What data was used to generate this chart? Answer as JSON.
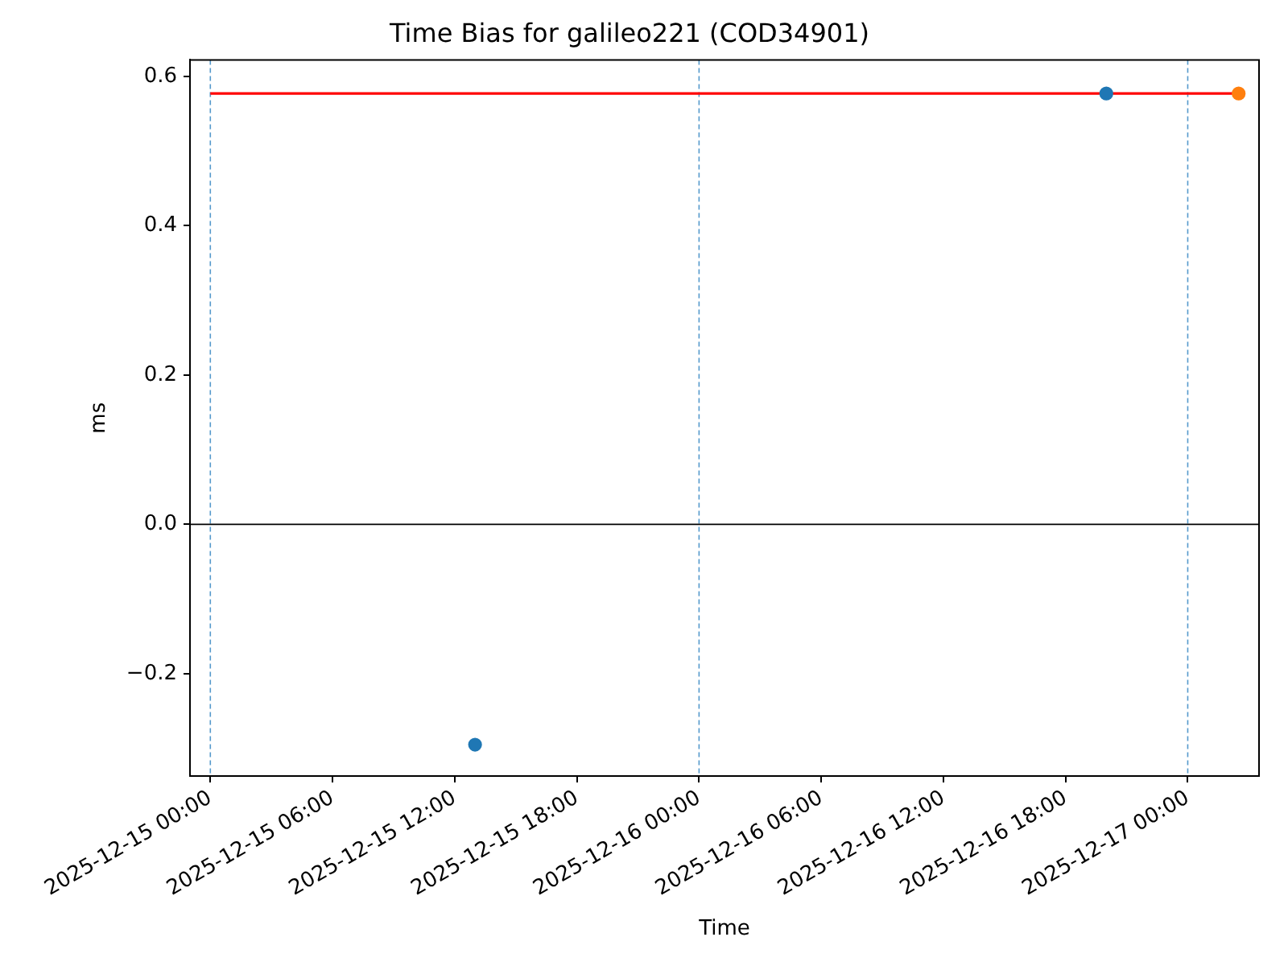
{
  "chart_data": {
    "type": "scatter",
    "title": "Time Bias for galileo221 (COD34901)",
    "xlabel": "Time",
    "ylabel": "ms",
    "xlim": [
      "2025-12-14T23:00",
      "2025-12-17T03:30"
    ],
    "xticks": [
      {
        "value": "2025-12-15T00:00",
        "label": "2025-12-15 00:00"
      },
      {
        "value": "2025-12-15T06:00",
        "label": "2025-12-15 06:00"
      },
      {
        "value": "2025-12-15T12:00",
        "label": "2025-12-15 12:00"
      },
      {
        "value": "2025-12-15T18:00",
        "label": "2025-12-15 18:00"
      },
      {
        "value": "2025-12-16T00:00",
        "label": "2025-12-16 00:00"
      },
      {
        "value": "2025-12-16T06:00",
        "label": "2025-12-16 06:00"
      },
      {
        "value": "2025-12-16T12:00",
        "label": "2025-12-16 12:00"
      },
      {
        "value": "2025-12-16T18:00",
        "label": "2025-12-16 18:00"
      },
      {
        "value": "2025-12-17T00:00",
        "label": "2025-12-17 00:00"
      }
    ],
    "ylim": [
      -0.337,
      0.622
    ],
    "yticks": [
      {
        "value": -0.2,
        "label": "−0.2"
      },
      {
        "value": 0,
        "label": "0.0"
      },
      0.2,
      0.4,
      0.6
    ],
    "series": [
      {
        "type": "line",
        "color": "#ff0000",
        "marker": "none",
        "line_style": "solid",
        "x": [
          "2025-12-15T00:00",
          "2025-12-17T02:30"
        ],
        "values": [
          0.577,
          0.577
        ]
      },
      {
        "type": "scatter",
        "color": "#1f77b4",
        "marker": "circle",
        "x": [
          "2025-12-15T13:00",
          "2025-12-16T20:00"
        ],
        "values": [
          -0.295,
          0.577
        ]
      },
      {
        "type": "scatter",
        "color": "#ff7f0e",
        "marker": "circle",
        "x": [
          "2025-12-17T02:30"
        ],
        "values": [
          0.577
        ]
      }
    ],
    "ref_lines": [
      {
        "axis": "x",
        "value": "2025-12-15T00:00",
        "color": "#5599cc",
        "line_style": "dashed"
      },
      {
        "axis": "x",
        "value": "2025-12-16T00:00",
        "color": "#5599cc",
        "line_style": "dashed"
      },
      {
        "axis": "x",
        "value": "2025-12-17T00:00",
        "color": "#5599cc",
        "line_style": "dashed"
      },
      {
        "axis": "y",
        "value": 0,
        "color": "#000000",
        "line_style": "solid"
      }
    ]
  }
}
